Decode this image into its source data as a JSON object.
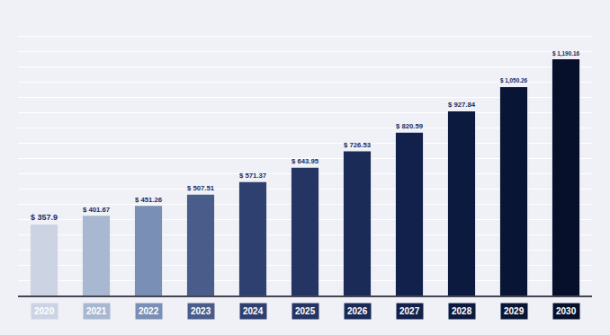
{
  "chart_data": {
    "type": "bar",
    "categories": [
      "2020",
      "2021",
      "2022",
      "2023",
      "2024",
      "2025",
      "2026",
      "2027",
      "2028",
      "2029",
      "2030"
    ],
    "values": [
      357.9,
      401.67,
      451.26,
      507.51,
      571.37,
      643.95,
      726.53,
      820.59,
      927.84,
      1050.26,
      1190.16
    ],
    "value_labels": [
      "$ 357.9",
      "$ 401.67",
      "$ 451.26",
      "$ 507.51",
      "$ 571.37",
      "$ 643.95",
      "$ 726.53",
      "$ 820.59",
      "$ 927.84",
      "$ 1,050.26",
      "$ 1,190.16"
    ],
    "data_labels": true,
    "colors": [
      "#ccd3e3",
      "#a8b8d0",
      "#7a8fb5",
      "#4a5d8a",
      "#2e4070",
      "#243564",
      "#1a2b58",
      "#12214c",
      "#0d1a3f",
      "#091535",
      "#06102a"
    ],
    "ylim": [
      0,
      1380
    ],
    "yticks": [
      0,
      76.66666666666667,
      153.33333333333334,
      230,
      306.6666666666667,
      383.33333333333337,
      460,
      536.6666666666667,
      613.3333333333334,
      690,
      766.6666666666667,
      843.3333333333334,
      920,
      996.6666666666667,
      1073.3333333333335,
      1150,
      1226.6666666666667,
      1303.3333333333335,
      1380
    ],
    "grid": true,
    "tick_labels": "x"
  }
}
